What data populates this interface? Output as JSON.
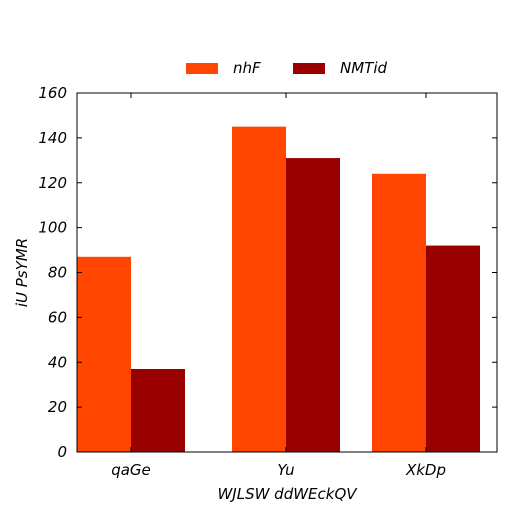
{
  "chart_data": {
    "type": "bar",
    "title": "",
    "xlabel": "WJLSW ddWEckQV",
    "ylabel": "iU PsYMR",
    "categories": [
      "qaGe",
      "Yu",
      "XkDp"
    ],
    "series": [
      {
        "name": "nhF",
        "values": [
          87,
          145,
          124
        ],
        "color": "#ff4500"
      },
      {
        "name": "NMTid",
        "values": [
          37,
          131,
          92
        ],
        "color": "#990000"
      }
    ],
    "ylim": [
      0,
      160
    ],
    "yticks": [
      0,
      20,
      40,
      60,
      80,
      100,
      120,
      140,
      160
    ],
    "grid": false,
    "legend_position": "top-center"
  }
}
